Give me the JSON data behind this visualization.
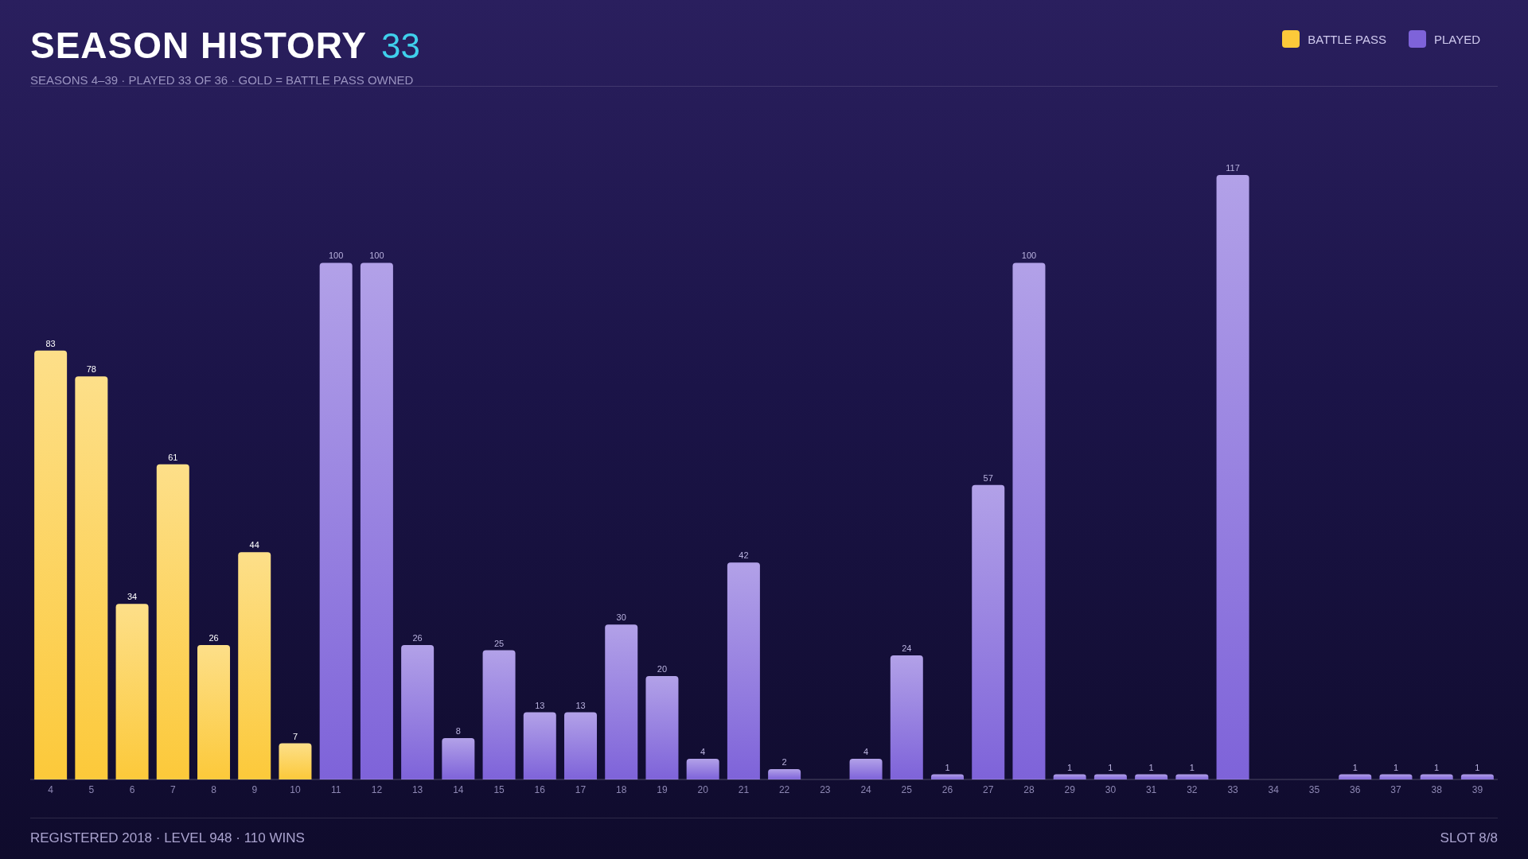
{
  "chart_data": {
    "type": "bar",
    "title": "SEASON HISTORY",
    "subtitle": "SEASONS 4–39 · PLAYED 33 OF 36 · GOLD = BATTLE PASS OWNED",
    "annotations": [
      "33",
      "REGISTERED 2018 · LEVEL 948 · 110 WINS",
      "SLOT 8/8"
    ],
    "categories": [
      "4",
      "5",
      "6",
      "7",
      "8",
      "9",
      "10",
      "11",
      "12",
      "13",
      "14",
      "15",
      "16",
      "17",
      "18",
      "19",
      "20",
      "21",
      "22",
      "23",
      "24",
      "25",
      "26",
      "27",
      "28",
      "29",
      "30",
      "31",
      "32",
      "33",
      "34",
      "35",
      "36",
      "37",
      "38",
      "39"
    ],
    "stacked": true,
    "series": [
      {
        "name": "BATTLE PASS",
        "color": "#fcc93a",
        "values": [
          83,
          78,
          34,
          61,
          26,
          44,
          7,
          null,
          null,
          null,
          null,
          null,
          null,
          null,
          null,
          null,
          null,
          null,
          null,
          null,
          null,
          null,
          null,
          null,
          null,
          null,
          null,
          null,
          null,
          null,
          null,
          null,
          null,
          null,
          null,
          null
        ]
      },
      {
        "name": "PLAYED",
        "color": "#7e63d9",
        "values": [
          null,
          null,
          null,
          null,
          null,
          null,
          null,
          100,
          100,
          26,
          8,
          25,
          13,
          13,
          30,
          20,
          4,
          42,
          2,
          null,
          4,
          24,
          1,
          57,
          100,
          1,
          1,
          1,
          1,
          117,
          null,
          null,
          1,
          1,
          1,
          1
        ]
      }
    ],
    "data_labels": true,
    "legend": "top right"
  }
}
